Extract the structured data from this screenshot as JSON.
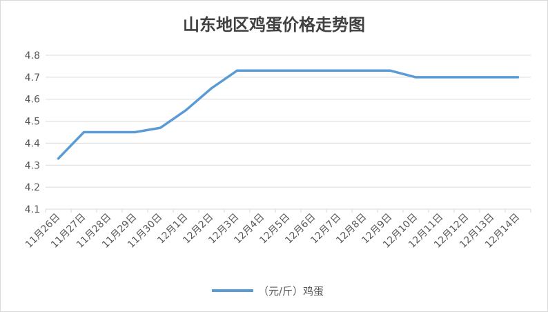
{
  "chart_data": {
    "type": "line",
    "title": "山东地区鸡蛋价格走势图",
    "xlabel": "",
    "ylabel": "",
    "categories": [
      "11月26日",
      "11月27日",
      "11月28日",
      "11月29日",
      "11月30日",
      "12月1日",
      "12月2日",
      "12月3日",
      "12月4日",
      "12月5日",
      "12月6日",
      "12月7日",
      "12月8日",
      "12月9日",
      "12月10日",
      "12月11日",
      "12月12日",
      "12月13日",
      "12月14日"
    ],
    "series": [
      {
        "name": "（元/斤）鸡蛋",
        "values": [
          4.33,
          4.45,
          4.45,
          4.45,
          4.47,
          4.55,
          4.65,
          4.73,
          4.73,
          4.73,
          4.73,
          4.73,
          4.73,
          4.73,
          4.7,
          4.7,
          4.7,
          4.7,
          4.7
        ]
      }
    ],
    "ylim": [
      4.1,
      4.8
    ],
    "yticks": [
      "4.1",
      "4.2",
      "4.3",
      "4.4",
      "4.5",
      "4.6",
      "4.7",
      "4.8"
    ],
    "grid": true,
    "legend": "bottom",
    "colors": {
      "line": "#5b9bd5",
      "grid": "#d9d9d9",
      "axis_text": "#595959",
      "title": "#404040"
    }
  }
}
